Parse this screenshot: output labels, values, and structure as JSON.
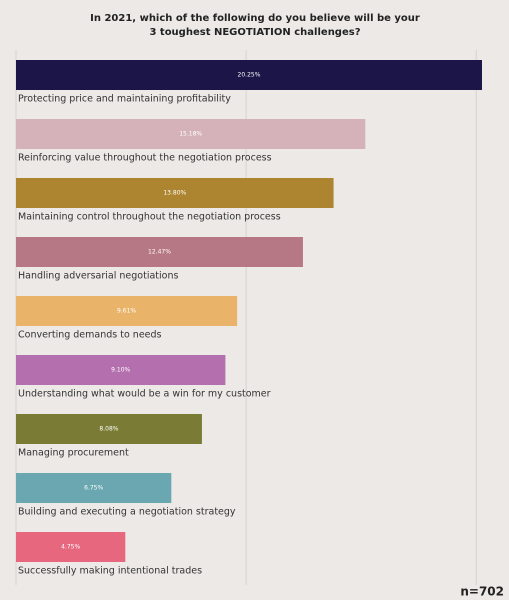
{
  "chart_data": {
    "type": "barh",
    "title": "In 2021, which of the following do you believe will be your 3 toughest NEGOTIATION challenges?",
    "categories": [
      "Protecting price and maintaining profitability",
      "Reinforcing value throughout the negotiation process",
      "Maintaining control throughout the negotiation process",
      "Handling adversarial negotiations",
      "Converting demands to needs",
      "Understanding what would be a win for my customer",
      "Managing procurement",
      "Building and executing a negotiation strategy",
      "Successfully making intentional trades"
    ],
    "values": [
      20.25,
      15.18,
      13.8,
      12.47,
      9.61,
      9.1,
      8.08,
      6.75,
      4.75
    ],
    "value_labels": [
      "20.25%",
      "15.18%",
      "13.80%",
      "12.47%",
      "9.61%",
      "9.10%",
      "8.08%",
      "6.75%",
      "4.75%"
    ],
    "colors": [
      "#1c1548",
      "#d5b2b9",
      "#ad8430",
      "#b67884",
      "#e9b46a",
      "#b46fae",
      "#7a7c35",
      "#6aa7b0",
      "#e7677f"
    ],
    "xlim": [
      0,
      21.25
    ],
    "xticks": [
      0,
      10,
      20
    ],
    "grid": true,
    "note": "n=702"
  }
}
